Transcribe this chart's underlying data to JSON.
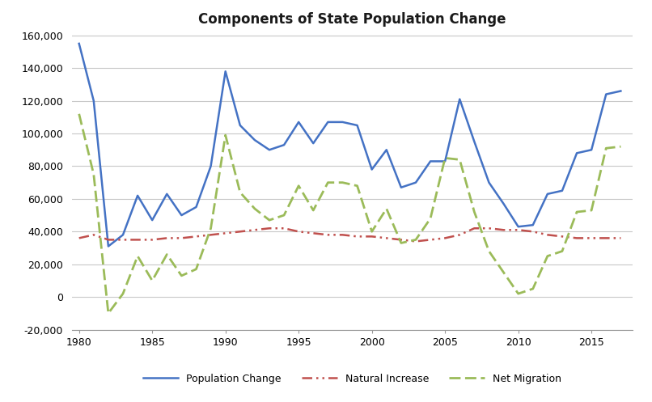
{
  "title": "Components of State Population Change",
  "years": [
    1980,
    1981,
    1982,
    1983,
    1984,
    1985,
    1986,
    1987,
    1988,
    1989,
    1990,
    1991,
    1992,
    1993,
    1994,
    1995,
    1996,
    1997,
    1998,
    1999,
    2000,
    2001,
    2002,
    2003,
    2004,
    2005,
    2006,
    2007,
    2008,
    2009,
    2010,
    2011,
    2012,
    2013,
    2014,
    2015,
    2016,
    2017
  ],
  "population_change": [
    155000,
    120000,
    31000,
    38000,
    62000,
    47000,
    63000,
    50000,
    55000,
    80000,
    138000,
    105000,
    96000,
    90000,
    93000,
    107000,
    94000,
    107000,
    107000,
    105000,
    78000,
    90000,
    67000,
    70000,
    83000,
    83000,
    121000,
    95000,
    70000,
    57000,
    43000,
    44000,
    63000,
    65000,
    88000,
    90000,
    124000,
    126000
  ],
  "natural_increase": [
    36000,
    38000,
    35000,
    35000,
    35000,
    35000,
    36000,
    36000,
    37000,
    38000,
    39000,
    40000,
    41000,
    42000,
    42000,
    40000,
    39000,
    38000,
    38000,
    37000,
    37000,
    36000,
    35000,
    34000,
    35000,
    36000,
    38000,
    42000,
    42000,
    41000,
    41000,
    40000,
    38000,
    37000,
    36000,
    36000,
    36000,
    36000
  ],
  "net_migration": [
    112000,
    75000,
    -10000,
    2000,
    25000,
    10000,
    26000,
    13000,
    17000,
    42000,
    99000,
    64000,
    54000,
    47000,
    50000,
    68000,
    53000,
    70000,
    70000,
    68000,
    40000,
    54000,
    33000,
    35000,
    48000,
    85000,
    84000,
    52000,
    28000,
    15000,
    2000,
    5000,
    25000,
    28000,
    52000,
    53000,
    91000,
    92000
  ],
  "pop_color": "#4472C4",
  "nat_color": "#C0504D",
  "mig_color": "#9BBB59",
  "xlim": [
    1979.5,
    2017.8
  ],
  "ylim": [
    -20000,
    162000
  ],
  "yticks": [
    -20000,
    0,
    20000,
    40000,
    60000,
    80000,
    100000,
    120000,
    140000,
    160000
  ],
  "xticks": [
    1980,
    1985,
    1990,
    1995,
    2000,
    2005,
    2010,
    2015
  ],
  "background_color": "#ffffff",
  "grid_color": "#c8c8c8"
}
